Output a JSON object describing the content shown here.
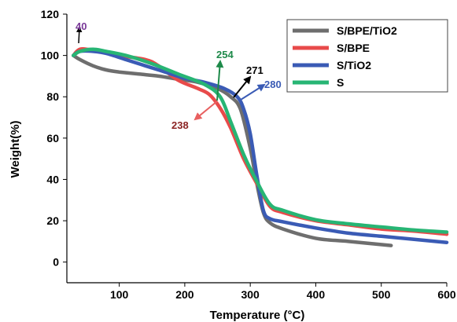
{
  "chart_data": {
    "type": "line",
    "title": "",
    "xlabel": "Temperature (°C)",
    "ylabel": "Weight(%)",
    "xlim": [
      20,
      600
    ],
    "ylim": [
      -10,
      120
    ],
    "xticks": [
      100,
      200,
      300,
      400,
      500,
      600
    ],
    "yticks": [
      0,
      20,
      40,
      60,
      80,
      100,
      120
    ],
    "grid": false,
    "legend_position": "top-right",
    "series": [
      {
        "name": "S/BPE/TiO2",
        "color": "#6e6e6e",
        "x": [
          30,
          40,
          60,
          80,
          100,
          130,
          160,
          190,
          220,
          250,
          270,
          285,
          300,
          310,
          320,
          330,
          350,
          400,
          450,
          515
        ],
        "y": [
          100,
          98,
          95,
          93,
          92,
          91,
          90,
          88.5,
          87,
          84,
          80,
          74,
          55,
          38,
          24,
          19,
          16,
          11.5,
          10,
          8
        ]
      },
      {
        "name": "S/BPE",
        "color": "#e84a4a",
        "x": [
          30,
          40,
          60,
          100,
          140,
          160,
          190,
          220,
          238,
          255,
          270,
          290,
          310,
          330,
          350,
          400,
          450,
          500,
          550,
          600
        ],
        "y": [
          100,
          103,
          102.5,
          100,
          98,
          95,
          88,
          84,
          81,
          74,
          65,
          50,
          38,
          27,
          24,
          20,
          18,
          16,
          15,
          13.5
        ]
      },
      {
        "name": "S/TiO2",
        "color": "#3a5bb5",
        "x": [
          30,
          40,
          60,
          80,
          110,
          140,
          170,
          200,
          230,
          260,
          280,
          290,
          300,
          310,
          320,
          330,
          350,
          400,
          450,
          500,
          550,
          600
        ],
        "y": [
          100,
          102,
          102,
          101,
          98,
          95,
          92,
          89,
          87,
          84,
          80,
          74,
          62,
          42,
          25,
          21,
          19.5,
          16.5,
          14,
          12.5,
          11,
          9.5
        ]
      },
      {
        "name": "S",
        "color": "#27b574",
        "x": [
          30,
          40,
          60,
          80,
          110,
          150,
          190,
          230,
          254,
          270,
          290,
          310,
          330,
          350,
          400,
          450,
          500,
          550,
          600
        ],
        "y": [
          100,
          102,
          103,
          102,
          100,
          96,
          91,
          86,
          80,
          68,
          52,
          39,
          28,
          25,
          20.5,
          18.5,
          17,
          15.5,
          14.5
        ]
      }
    ],
    "annotations": [
      {
        "label": "40",
        "color": "#7a3a99",
        "x": 40,
        "y": 102
      },
      {
        "label": "254",
        "color": "#1e8a4a",
        "x": 254,
        "y": 80
      },
      {
        "label": "271",
        "color": "#000000",
        "x": 271,
        "y": 79
      },
      {
        "label": "280",
        "color": "#3a5bb5",
        "x": 280,
        "y": 78
      },
      {
        "label": "238",
        "color": "#8b2323",
        "x": 238,
        "y": 81
      }
    ]
  }
}
